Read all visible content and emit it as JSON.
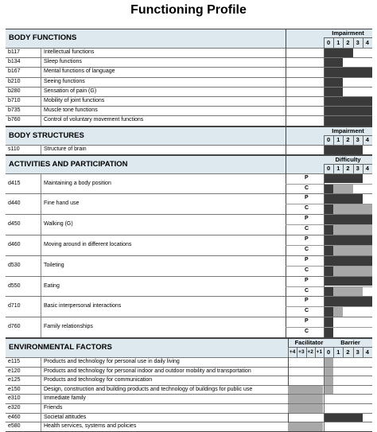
{
  "title": "Functioning Profile",
  "body_functions": {
    "header": "BODY FUNCTIONS",
    "scale_title": "Impairment",
    "scale": [
      "0",
      "1",
      "2",
      "3",
      "4"
    ],
    "items": [
      {
        "code": "b117",
        "label": "Intellectual functions",
        "level": 2
      },
      {
        "code": "b134",
        "label": "Sleep functions",
        "level": 1
      },
      {
        "code": "b167",
        "label": "Mental functions of language",
        "level": 4
      },
      {
        "code": "b210",
        "label": "Seeing functions",
        "level": 1
      },
      {
        "code": "b280",
        "label": "Sensation of pain (G)",
        "level": 1
      },
      {
        "code": "b710",
        "label": "Mobility of joint functions",
        "level": 4
      },
      {
        "code": "b735",
        "label": "Muscle tone functions",
        "level": 4
      },
      {
        "code": "b760",
        "label": "Control of voluntary movement functions",
        "level": 4
      }
    ]
  },
  "body_structures": {
    "header": "BODY STRUCTURES",
    "scale_title": "Impairment",
    "scale": [
      "0",
      "1",
      "2",
      "3",
      "4"
    ],
    "items": [
      {
        "code": "s110",
        "label": "Structure of brain",
        "level": 3
      }
    ]
  },
  "activities": {
    "header": "ACTIVITIES AND PARTICIPATION",
    "scale_title": "Difficulty",
    "scale": [
      "0",
      "1",
      "2",
      "3",
      "4"
    ],
    "items": [
      {
        "code": "d415",
        "label": "Maintaining a body position",
        "p_label": "P",
        "c_label": "C",
        "p": 4,
        "c": 3
      },
      {
        "code": "d440",
        "label": "Fine hand use",
        "p_label": "P",
        "c_label": "C",
        "p": 4,
        "c": 5
      },
      {
        "code": "d450",
        "label": "Walking (G)",
        "p_label": "P",
        "c_label": "C",
        "p": 5,
        "c": 5
      },
      {
        "code": "d460",
        "label": "Moving around in different locations",
        "p_label": "P",
        "c_label": "C",
        "p": 5,
        "c": 5
      },
      {
        "code": "d530",
        "label": "Toileting",
        "p_label": "P",
        "c_label": "C",
        "p": 5,
        "c": 5
      },
      {
        "code": "d550",
        "label": "Eating",
        "p_label": "P",
        "c_label": "C",
        "p": 5,
        "c": 4
      },
      {
        "code": "d710",
        "label": "Basic interpersonal interactions",
        "p_label": "P",
        "c_label": "C",
        "p": 5,
        "c": 2
      },
      {
        "code": "d760",
        "label": "Family relationships",
        "p_label": "P",
        "c_label": "C",
        "p": 1,
        "c": 1
      }
    ]
  },
  "environmental": {
    "header": "ENVIRONMENTAL FACTORS",
    "facilitator_title": "Facilitator",
    "barrier_title": "Barrier",
    "facilitator_scale": [
      "+4",
      "+3",
      "+2",
      "+1"
    ],
    "barrier_scale": [
      "0",
      "1",
      "2",
      "3",
      "4"
    ],
    "items": [
      {
        "code": "e115",
        "label": "Products and technology for personal use in daily living",
        "facilitator": 0,
        "barrier": 1
      },
      {
        "code": "e120",
        "label": "Products and technology for personal indoor and outdoor mobility and transportation",
        "facilitator": 0,
        "barrier": 1
      },
      {
        "code": "e125",
        "label": "Products and technology for communication",
        "facilitator": 0,
        "barrier": 1
      },
      {
        "code": "e150",
        "label": "Design, construction and building products and technology of buildings for public use",
        "facilitator": 4,
        "barrier": 1
      },
      {
        "code": "e310",
        "label": "Immediate family",
        "facilitator": 4,
        "barrier": 0
      },
      {
        "code": "e320",
        "label": "Friends",
        "facilitator": 4,
        "barrier": 0
      },
      {
        "code": "e460",
        "label": "Societal attitudes",
        "facilitator": 0,
        "barrier": 4
      },
      {
        "code": "e580",
        "label": "Health services, systems and policies",
        "facilitator": 4,
        "barrier": 0
      }
    ]
  },
  "colors": {
    "dark": "#3a3a3a",
    "grey": "#a8a8a8",
    "header_bg": "#dde9ee",
    "border": "#444444"
  }
}
